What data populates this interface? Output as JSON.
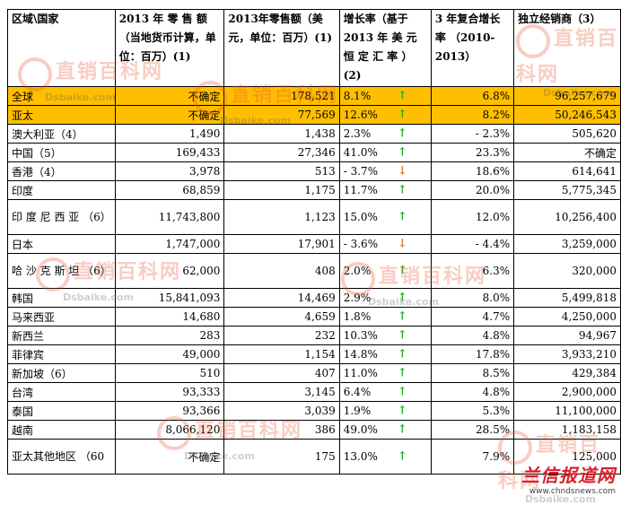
{
  "headers": [
    "区域\\国家",
    "2013 年 零 售 额（当地货币计算，单位：百万）(1)",
    "2013年零售额（美元，单位：百万）(1)",
    "增长率（基于 2013 年 美 元 恒 定 汇 率 ）(2)",
    "3 年复合增长率 （2010-2013）",
    "独立经销商（3）"
  ],
  "rows": [
    {
      "region": "全球",
      "local": "不确定",
      "usd": "178,521",
      "growth": "8.1%",
      "dir": "up",
      "cagr": "6.8%",
      "dist": "96,257,679",
      "hl": true
    },
    {
      "region": "亚太",
      "local": "不确定",
      "usd": "77,569",
      "growth": "12.6%",
      "dir": "up",
      "cagr": "8.2%",
      "dist": "50,246,543",
      "hl": true
    },
    {
      "region": "澳大利亚（4）",
      "local": "1,490",
      "usd": "1,438",
      "growth": "2.3%",
      "dir": "up",
      "cagr": "- 2.3%",
      "dist": "505,620"
    },
    {
      "region": "中国（5）",
      "local": "169,433",
      "usd": "27,346",
      "growth": "41.0%",
      "dir": "up",
      "cagr": "23.3%",
      "dist": "不确定"
    },
    {
      "region": "香港（4）",
      "local": "3,978",
      "usd": "513",
      "growth": "- 3.7%",
      "dir": "down",
      "cagr": "18.6%",
      "dist": "614,641"
    },
    {
      "region": "印度",
      "local": "68,859",
      "usd": "1,175",
      "growth": "11.7%",
      "dir": "up",
      "cagr": "20.0%",
      "dist": "5,775,345"
    },
    {
      "region": "印 度 尼 西 亚 （6）",
      "local": "11,743,800",
      "usd": "1,123",
      "growth": "15.0%",
      "dir": "up",
      "cagr": "12.0%",
      "dist": "10,256,400",
      "tall": true
    },
    {
      "region": "日本",
      "local": "1,747,000",
      "usd": "17,901",
      "growth": "- 3.6%",
      "dir": "down",
      "cagr": "- 4.4%",
      "dist": "3,259,000"
    },
    {
      "region": "哈 沙 克 斯 坦 （6）",
      "local": "62,000",
      "usd": "408",
      "growth": "2.0%",
      "dir": "up",
      "cagr": "6.3%",
      "dist": "320,000",
      "tall": true
    },
    {
      "region": "韩国",
      "local": "15,841,093",
      "usd": "14,469",
      "growth": "2.9%",
      "dir": "up",
      "cagr": "8.0%",
      "dist": "5,499,818"
    },
    {
      "region": "马来西亚",
      "local": "14,680",
      "usd": "4,659",
      "growth": "1.8%",
      "dir": "up",
      "cagr": "4.7%",
      "dist": "4,250,000"
    },
    {
      "region": "新西兰",
      "local": "283",
      "usd": "232",
      "growth": "10.3%",
      "dir": "up",
      "cagr": "4.8%",
      "dist": "94,967"
    },
    {
      "region": "菲律宾",
      "local": "49,000",
      "usd": "1,154",
      "growth": "14.8%",
      "dir": "up",
      "cagr": "17.8%",
      "dist": "3,933,210"
    },
    {
      "region": "新加坡（6）",
      "local": "510",
      "usd": "407",
      "growth": "11.0%",
      "dir": "up",
      "cagr": "8.5%",
      "dist": "429,384"
    },
    {
      "region": "台湾",
      "local": "93,333",
      "usd": "3,145",
      "growth": "6.4%",
      "dir": "up",
      "cagr": "4.8%",
      "dist": "2,900,000"
    },
    {
      "region": "泰国",
      "local": "93,366",
      "usd": "3,039",
      "growth": "1.9%",
      "dir": "up",
      "cagr": "5.3%",
      "dist": "11,100,000"
    },
    {
      "region": "越南",
      "local": "8,066,120",
      "usd": "386",
      "growth": "49.0%",
      "dir": "up",
      "cagr": "28.5%",
      "dist": "1,183,158"
    },
    {
      "region": "亚太其他地区 （60",
      "local": "不确定",
      "usd": "175",
      "growth": "13.0%",
      "dir": "up",
      "cagr": "7.9%",
      "dist": "125,000",
      "tall": true
    }
  ],
  "arrows": {
    "up": "↑",
    "down": "↓"
  },
  "colors": {
    "highlight": "#ffbf00",
    "up_arrow": "#1fb31f",
    "down_arrow": "#e07a1e"
  },
  "watermark": {
    "cn": "直销百科网",
    "en": "Dsbaike.com"
  },
  "corner": {
    "logo": "兰信报道网",
    "url": "www.chndsnews.com"
  }
}
